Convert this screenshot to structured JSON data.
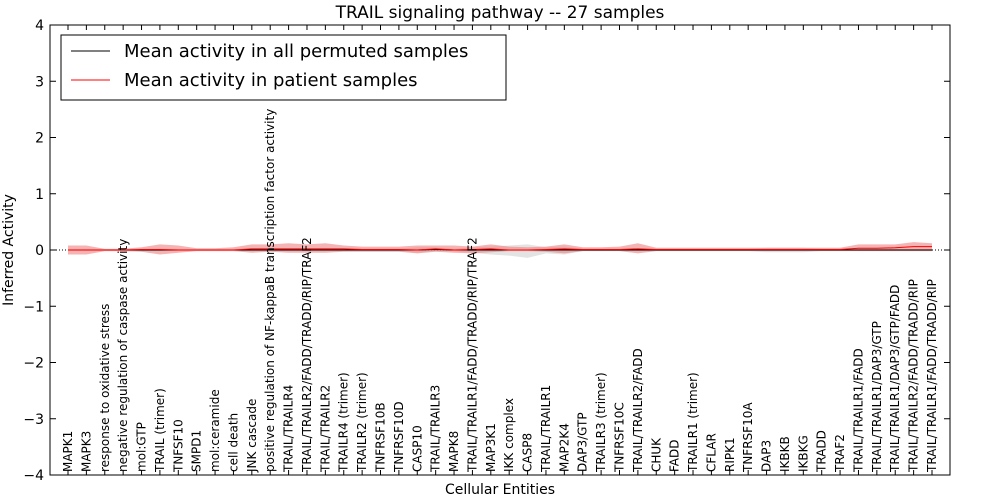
{
  "chart_data": {
    "type": "line",
    "title": "TRAIL signaling pathway -- 27 samples",
    "xlabel": "Cellular Entities",
    "ylabel": "Inferred Activity",
    "ylim": [
      -4,
      4
    ],
    "yticks": [
      -4,
      -3,
      -2,
      -1,
      0,
      1,
      2,
      3,
      4
    ],
    "ytick_labels": [
      "−4",
      "−3",
      "−2",
      "−1",
      "0",
      "1",
      "2",
      "3",
      "4"
    ],
    "grid": false,
    "legend_position": "top-left",
    "categories": [
      "MAPK1",
      "MAPK3",
      "response to oxidative stress",
      "negative regulation of caspase activity",
      "mol:GTP",
      "TRAIL (trimer)",
      "TNFSF10",
      "SMPD1",
      "mol:ceramide",
      "cell death",
      "JNK cascade",
      "positive regulation of NF-kappaB transcription factor activity",
      "TRAIL/TRAILR4",
      "TRAIL/TRAILR2/FADD/TRADD/RIP/TRAF2",
      "TRAIL/TRAILR2",
      "TRAILR4 (trimer)",
      "TRAILR2 (trimer)",
      "TNFRSF10B",
      "TNFRSF10D",
      "CASP10",
      "TRAIL/TRAILR3",
      "MAPK8",
      "TRAIL/TRAILR1/FADD/TRADD/RIP/TRAF2",
      "MAP3K1",
      "IKK complex",
      "CASP8",
      "TRAIL/TRAILR1",
      "MAP2K4",
      "DAP3/GTP",
      "TRAILR3 (trimer)",
      "TNFRSF10C",
      "TRAIL/TRAILR2/FADD",
      "CHUK",
      "FADD",
      "TRAILR1 (trimer)",
      "CFLAR",
      "RIPK1",
      "TNFRSF10A",
      "DAP3",
      "IKBKB",
      "IKBKG",
      "TRADD",
      "TRAF2",
      "TRAIL/TRAILR1/FADD",
      "TRAIL/TRAILR1/DAP3/GTP",
      "TRAIL/TRAILR1/DAP3/GTP/FADD",
      "TRAIL/TRAILR2/FADD/TRADD/RIP",
      "TRAIL/TRAILR1/FADD/TRADD/RIP"
    ],
    "series": [
      {
        "name": "Mean activity in all permuted samples",
        "color": "#000000",
        "values": [
          0,
          0,
          0,
          0,
          0,
          0,
          0,
          0,
          0,
          0,
          0,
          0,
          0,
          0,
          0,
          0,
          0,
          0,
          0,
          0,
          0.01,
          0,
          0,
          0,
          0,
          0,
          0,
          0,
          0,
          0,
          0,
          0,
          0,
          0,
          0,
          0,
          0,
          0,
          0,
          0,
          0,
          0,
          0,
          0,
          0,
          0,
          0,
          0
        ],
        "lower": [
          -0.02,
          -0.02,
          -0.02,
          -0.02,
          -0.02,
          -0.02,
          -0.02,
          -0.02,
          -0.02,
          -0.02,
          -0.02,
          -0.02,
          -0.02,
          -0.02,
          -0.02,
          -0.02,
          -0.02,
          -0.02,
          -0.02,
          -0.05,
          -0.02,
          -0.02,
          -0.05,
          -0.08,
          -0.1,
          -0.14,
          -0.06,
          -0.08,
          -0.02,
          -0.02,
          -0.02,
          -0.02,
          -0.02,
          -0.02,
          -0.02,
          -0.02,
          -0.02,
          -0.02,
          -0.04,
          -0.04,
          -0.04,
          -0.02,
          -0.02,
          -0.02,
          -0.02,
          -0.02,
          -0.02,
          -0.02
        ],
        "upper": [
          0.02,
          0.02,
          0.02,
          0.02,
          0.02,
          0.02,
          0.02,
          0.02,
          0.02,
          0.02,
          0.02,
          0.02,
          0.02,
          0.02,
          0.02,
          0.02,
          0.02,
          0.02,
          0.02,
          0.05,
          0.05,
          0.02,
          0.05,
          0.06,
          0.08,
          0.1,
          0.05,
          0.06,
          0.02,
          0.02,
          0.02,
          0.02,
          0.02,
          0.02,
          0.02,
          0.02,
          0.02,
          0.02,
          0.04,
          0.04,
          0.04,
          0.02,
          0.02,
          0.02,
          0.02,
          0.02,
          0.02,
          0.02
        ]
      },
      {
        "name": "Mean activity in patient samples",
        "color": "#ff0000",
        "values": [
          0,
          0,
          0,
          0,
          0.01,
          0.01,
          0,
          0,
          0,
          0,
          0.02,
          0.02,
          0.02,
          0.02,
          0.02,
          0.02,
          0.01,
          0.01,
          0.01,
          0,
          0.02,
          0,
          0.01,
          0.02,
          0,
          0,
          0.01,
          0.02,
          0.01,
          0.01,
          0.01,
          0.02,
          0.01,
          0.01,
          0.01,
          0.01,
          0.01,
          0.01,
          0.01,
          0.01,
          0.01,
          0.01,
          0.01,
          0.03,
          0.03,
          0.04,
          0.06,
          0.06
        ],
        "lower": [
          -0.08,
          -0.08,
          -0.02,
          -0.02,
          -0.03,
          -0.08,
          -0.05,
          -0.02,
          -0.02,
          -0.02,
          -0.05,
          -0.03,
          -0.05,
          -0.05,
          -0.05,
          -0.03,
          -0.03,
          -0.03,
          -0.03,
          -0.06,
          -0.03,
          -0.05,
          -0.06,
          -0.04,
          -0.02,
          -0.02,
          -0.03,
          -0.06,
          -0.02,
          -0.02,
          -0.02,
          -0.06,
          -0.02,
          -0.02,
          -0.02,
          -0.02,
          -0.02,
          -0.02,
          -0.02,
          -0.02,
          -0.02,
          -0.02,
          -0.02,
          -0.02,
          -0.02,
          -0.02,
          -0.02,
          -0.02
        ],
        "upper": [
          0.08,
          0.08,
          0.02,
          0.02,
          0.05,
          0.1,
          0.08,
          0.03,
          0.03,
          0.05,
          0.1,
          0.1,
          0.12,
          0.1,
          0.12,
          0.08,
          0.06,
          0.06,
          0.06,
          0.08,
          0.08,
          0.08,
          0.06,
          0.1,
          0.06,
          0.05,
          0.06,
          0.1,
          0.05,
          0.05,
          0.06,
          0.12,
          0.04,
          0.04,
          0.04,
          0.04,
          0.04,
          0.04,
          0.04,
          0.04,
          0.04,
          0.04,
          0.04,
          0.1,
          0.1,
          0.1,
          0.14,
          0.12
        ]
      }
    ]
  }
}
